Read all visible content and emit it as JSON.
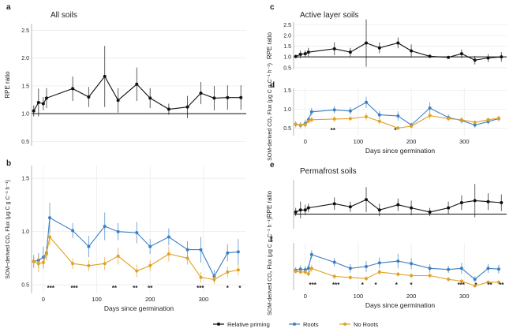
{
  "figure": {
    "legend": [
      {
        "key": "rp",
        "label": "Relative priming",
        "color": "#111111"
      },
      {
        "key": "roots",
        "label": "Roots",
        "color": "#3b7fc2"
      },
      {
        "key": "noroots",
        "label": "No Roots",
        "color": "#e0a124"
      }
    ]
  },
  "chart_data": [
    {
      "id": "a",
      "panel_label": "a",
      "title": "All soils",
      "type": "line",
      "xlabel": "",
      "ylabel": "RPE ratio",
      "xlim": [
        -22,
        380
      ],
      "ylim": [
        0.42,
        2.62
      ],
      "xticks": [],
      "yticks": [
        0.5,
        1.0,
        1.5,
        2.0,
        2.5
      ],
      "ytick_labels": [
        "0.5",
        "1.0",
        "1.5",
        "2.0",
        "2.5"
      ],
      "reference_line": 1.0,
      "series": [
        {
          "key": "rp",
          "color": "#111111",
          "x": [
            -18,
            -9,
            0,
            6,
            55,
            85,
            115,
            140,
            175,
            200,
            235,
            270,
            295,
            320,
            345,
            370
          ],
          "y": [
            1.05,
            1.2,
            1.18,
            1.28,
            1.45,
            1.3,
            1.67,
            1.24,
            1.53,
            1.28,
            1.08,
            1.12,
            1.37,
            1.28,
            1.29,
            1.29
          ],
          "err": [
            0.1,
            0.25,
            0.12,
            0.18,
            0.22,
            0.18,
            0.55,
            0.22,
            0.3,
            0.18,
            0.1,
            0.2,
            0.2,
            0.22,
            0.22,
            0.22
          ]
        }
      ]
    },
    {
      "id": "b",
      "panel_label": "b",
      "title": "",
      "type": "line",
      "xlabel": "Days since germination",
      "ylabel": "SOM−derived CO₂ Flux (μg C g C⁻¹ h⁻¹)",
      "xlim": [
        -22,
        380
      ],
      "ylim": [
        0.42,
        1.62
      ],
      "xticks": [
        0,
        100,
        200,
        300
      ],
      "xtick_labels": [
        "0",
        "100",
        "200",
        "300"
      ],
      "yticks": [
        0.5,
        1.0,
        1.5
      ],
      "ytick_labels": [
        "0.5",
        "1.0",
        "1.5"
      ],
      "significance": [
        {
          "x": 14,
          "label": "***"
        },
        {
          "x": 58,
          "label": "***"
        },
        {
          "x": 133,
          "label": "**"
        },
        {
          "x": 172,
          "label": "**"
        },
        {
          "x": 200,
          "label": "**"
        },
        {
          "x": 294,
          "label": "***"
        },
        {
          "x": 345,
          "label": "*"
        },
        {
          "x": 368,
          "label": "*"
        }
      ],
      "series": [
        {
          "key": "roots",
          "color": "#3b7fc2",
          "x": [
            -18,
            -9,
            0,
            6,
            12,
            55,
            85,
            115,
            140,
            175,
            200,
            235,
            270,
            295,
            320,
            345,
            365
          ],
          "y": [
            0.72,
            0.73,
            0.76,
            0.8,
            1.13,
            1.01,
            0.86,
            1.05,
            1.0,
            0.99,
            0.86,
            0.95,
            0.83,
            0.83,
            0.58,
            0.8,
            0.81
          ],
          "err": [
            0.06,
            0.07,
            0.1,
            0.06,
            0.14,
            0.07,
            0.1,
            0.13,
            0.08,
            0.1,
            0.07,
            0.08,
            0.08,
            0.12,
            0.06,
            0.08,
            0.12
          ]
        },
        {
          "key": "noroots",
          "color": "#e0a124",
          "x": [
            -18,
            -9,
            0,
            6,
            12,
            55,
            85,
            115,
            140,
            175,
            200,
            235,
            270,
            295,
            320,
            345,
            365
          ],
          "y": [
            0.72,
            0.7,
            0.71,
            0.79,
            0.95,
            0.7,
            0.68,
            0.7,
            0.77,
            0.63,
            0.68,
            0.79,
            0.75,
            0.57,
            0.55,
            0.62,
            0.64
          ],
          "err": [
            0.06,
            0.08,
            0.06,
            0.06,
            0.08,
            0.05,
            0.05,
            0.06,
            0.08,
            0.06,
            0.05,
            0.07,
            0.06,
            0.05,
            0.04,
            0.05,
            0.05
          ]
        }
      ]
    },
    {
      "id": "c",
      "panel_label": "c",
      "title": "Active layer soils",
      "type": "line",
      "xlabel": "",
      "ylabel": "RPE ratio",
      "xlim": [
        -22,
        380
      ],
      "ylim": [
        0.42,
        2.62
      ],
      "xticks": [],
      "yticks": [
        0.5,
        1.0,
        1.5,
        2.0,
        2.5
      ],
      "ytick_labels": [
        "0.5",
        "1.0",
        "1.5",
        "2.0",
        "2.5"
      ],
      "reference_line": 1.0,
      "series": [
        {
          "key": "rp",
          "color": "#111111",
          "x": [
            -18,
            -9,
            0,
            6,
            55,
            85,
            115,
            140,
            175,
            200,
            235,
            270,
            295,
            320,
            345,
            370
          ],
          "y": [
            1.02,
            1.12,
            1.15,
            1.22,
            1.38,
            1.22,
            1.65,
            1.42,
            1.65,
            1.28,
            1.03,
            0.98,
            1.15,
            0.85,
            0.95,
            1.0
          ],
          "err": [
            0.08,
            0.18,
            0.15,
            0.2,
            0.3,
            0.2,
            1.1,
            0.25,
            0.25,
            0.3,
            0.08,
            0.05,
            0.2,
            0.2,
            0.18,
            0.22
          ]
        }
      ]
    },
    {
      "id": "d",
      "panel_label": "d",
      "title": "",
      "type": "line",
      "xlabel": "Days since germination",
      "ylabel": "SOM-derived CO₂ Flux (μg C g C⁻¹ h⁻¹)",
      "xlim": [
        -22,
        380
      ],
      "ylim": [
        0.3,
        1.55
      ],
      "xticks": [
        0,
        100,
        200,
        300
      ],
      "xtick_labels": [
        "0",
        "100",
        "200",
        "300"
      ],
      "yticks": [
        0.5,
        1.0,
        1.5
      ],
      "ytick_labels": [
        "0.5",
        "1.0",
        "1.5"
      ],
      "significance": [
        {
          "x": 52,
          "label": "**"
        },
        {
          "x": 170,
          "label": "*"
        }
      ],
      "series": [
        {
          "key": "roots",
          "color": "#3b7fc2",
          "x": [
            -18,
            -9,
            0,
            6,
            12,
            55,
            85,
            115,
            140,
            175,
            200,
            235,
            270,
            295,
            320,
            345,
            365
          ],
          "y": [
            0.6,
            0.57,
            0.62,
            0.72,
            0.93,
            0.98,
            0.95,
            1.18,
            0.85,
            0.82,
            0.58,
            1.03,
            0.78,
            0.7,
            0.58,
            0.67,
            0.75
          ],
          "err": [
            0.08,
            0.08,
            0.1,
            0.08,
            0.1,
            0.1,
            0.1,
            0.15,
            0.1,
            0.12,
            0.06,
            0.15,
            0.08,
            0.08,
            0.07,
            0.07,
            0.07
          ]
        },
        {
          "key": "noroots",
          "color": "#e0a124",
          "x": [
            -18,
            -9,
            0,
            6,
            12,
            55,
            85,
            115,
            140,
            175,
            200,
            235,
            270,
            295,
            320,
            345,
            365
          ],
          "y": [
            0.6,
            0.58,
            0.59,
            0.68,
            0.72,
            0.74,
            0.75,
            0.8,
            0.68,
            0.5,
            0.55,
            0.83,
            0.75,
            0.72,
            0.65,
            0.72,
            0.76
          ],
          "err": [
            0.06,
            0.06,
            0.06,
            0.06,
            0.08,
            0.08,
            0.06,
            0.1,
            0.08,
            0.05,
            0.06,
            0.1,
            0.06,
            0.06,
            0.05,
            0.06,
            0.06
          ]
        }
      ]
    },
    {
      "id": "e",
      "panel_label": "e",
      "title": "Permafrost soils",
      "type": "line",
      "xlabel": "",
      "ylabel": "RPE ratio",
      "xlim": [
        -22,
        380
      ],
      "ylim": [
        0.3,
        2.65
      ],
      "xticks": [],
      "yticks": [],
      "ytick_labels": [],
      "reference_line": 1.0,
      "series": [
        {
          "key": "rp",
          "color": "#111111",
          "x": [
            -18,
            -9,
            0,
            6,
            55,
            85,
            115,
            140,
            175,
            200,
            235,
            270,
            295,
            320,
            345,
            370
          ],
          "y": [
            1.1,
            1.2,
            1.2,
            1.3,
            1.5,
            1.35,
            1.7,
            1.2,
            1.45,
            1.3,
            1.1,
            1.3,
            1.55,
            1.65,
            1.6,
            1.55
          ],
          "err": [
            0.2,
            0.4,
            0.25,
            0.2,
            0.3,
            0.25,
            0.6,
            0.3,
            0.3,
            0.35,
            0.2,
            0.3,
            0.35,
            0.8,
            0.4,
            0.4
          ]
        }
      ]
    },
    {
      "id": "f",
      "panel_label": "f",
      "title": "",
      "type": "line",
      "xlabel": "Days since germination",
      "ylabel": "SOM-derived CO₂ Flux (μg C g C⁻¹ h⁻¹)",
      "xlim": [
        -22,
        380
      ],
      "ylim": [
        0.3,
        1.6
      ],
      "xticks": [
        0,
        100,
        200,
        300
      ],
      "xtick_labels": [
        "0",
        "100",
        "200",
        "300"
      ],
      "yticks": [],
      "ytick_labels": [],
      "significance": [
        {
          "x": 14,
          "label": "***"
        },
        {
          "x": 58,
          "label": "***"
        },
        {
          "x": 108,
          "label": "*"
        },
        {
          "x": 133,
          "label": "*"
        },
        {
          "x": 172,
          "label": "*"
        },
        {
          "x": 200,
          "label": "*"
        },
        {
          "x": 294,
          "label": "***"
        },
        {
          "x": 322,
          "label": "*"
        },
        {
          "x": 348,
          "label": "**"
        },
        {
          "x": 370,
          "label": "**"
        }
      ],
      "series": [
        {
          "key": "roots",
          "color": "#3b7fc2",
          "x": [
            -18,
            -9,
            0,
            6,
            12,
            55,
            85,
            115,
            140,
            175,
            200,
            235,
            270,
            295,
            320,
            345,
            365
          ],
          "y": [
            0.85,
            0.88,
            0.86,
            0.9,
            1.28,
            1.07,
            0.9,
            0.95,
            1.05,
            1.1,
            1.03,
            0.9,
            0.87,
            0.9,
            0.6,
            0.9,
            0.88
          ],
          "err": [
            0.08,
            0.1,
            0.1,
            0.1,
            0.12,
            0.12,
            0.12,
            0.15,
            0.15,
            0.2,
            0.15,
            0.12,
            0.1,
            0.15,
            0.08,
            0.12,
            0.12
          ]
        },
        {
          "key": "noroots",
          "color": "#e0a124",
          "x": [
            -18,
            -9,
            0,
            6,
            12,
            55,
            85,
            115,
            140,
            175,
            200,
            235,
            270,
            295,
            320,
            345,
            365
          ],
          "y": [
            0.82,
            0.8,
            0.8,
            0.75,
            0.9,
            0.68,
            0.65,
            0.62,
            0.8,
            0.74,
            0.7,
            0.7,
            0.6,
            0.55,
            0.42,
            0.52,
            0.52
          ],
          "err": [
            0.06,
            0.06,
            0.06,
            0.06,
            0.1,
            0.06,
            0.06,
            0.06,
            0.08,
            0.06,
            0.06,
            0.06,
            0.06,
            0.05,
            0.04,
            0.05,
            0.05
          ]
        }
      ]
    }
  ]
}
